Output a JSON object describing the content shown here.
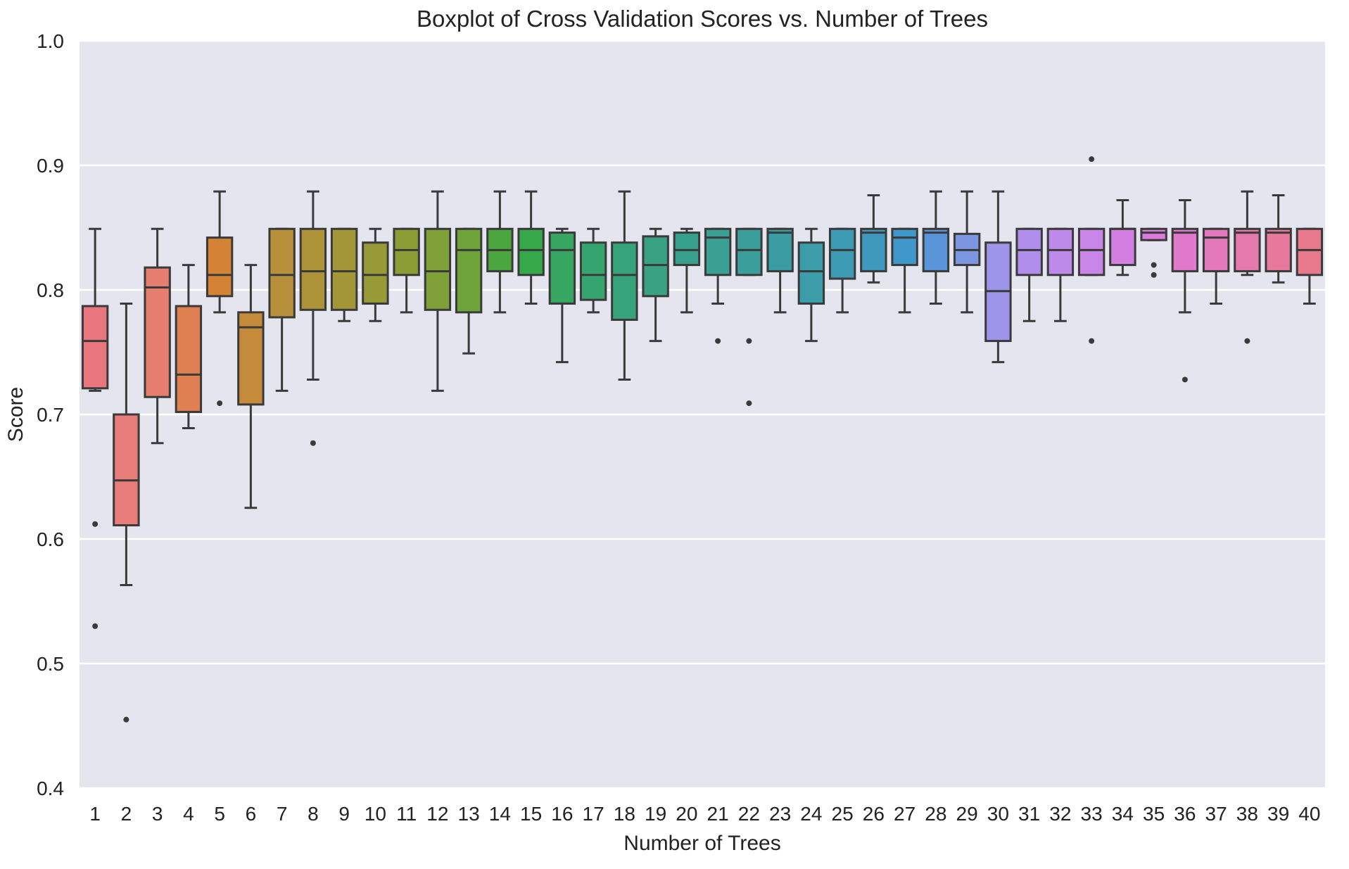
{
  "chart_data": {
    "type": "boxplot",
    "title": "Boxplot of Cross Validation Scores vs. Number of Trees",
    "xlabel": "Number of Trees",
    "ylabel": "Score",
    "ylim": [
      0.4,
      1.0
    ],
    "yticks": [
      "1.0",
      "0.9",
      "0.8",
      "0.7",
      "0.6",
      "0.5",
      "0.4"
    ],
    "grid": true,
    "background": "#e5e5ef",
    "categories": [
      "1",
      "2",
      "3",
      "4",
      "5",
      "6",
      "7",
      "8",
      "9",
      "10",
      "11",
      "12",
      "13",
      "14",
      "15",
      "16",
      "17",
      "18",
      "19",
      "20",
      "21",
      "22",
      "23",
      "24",
      "25",
      "26",
      "27",
      "28",
      "29",
      "30",
      "31",
      "32",
      "33",
      "34",
      "35",
      "36",
      "37",
      "38",
      "39",
      "40"
    ],
    "boxes": [
      {
        "whisker_low": 0.719,
        "q1": 0.721,
        "median": 0.759,
        "q3": 0.787,
        "whisker_high": 0.849,
        "outliers": [
          0.612,
          0.53
        ],
        "color": "#e9767f"
      },
      {
        "whisker_low": 0.563,
        "q1": 0.611,
        "median": 0.647,
        "q3": 0.7,
        "whisker_high": 0.789,
        "outliers": [
          0.455
        ],
        "color": "#e77c78"
      },
      {
        "whisker_low": 0.677,
        "q1": 0.714,
        "median": 0.802,
        "q3": 0.818,
        "whisker_high": 0.849,
        "outliers": [],
        "color": "#e57e6f"
      },
      {
        "whisker_low": 0.689,
        "q1": 0.702,
        "median": 0.732,
        "q3": 0.787,
        "whisker_high": 0.82,
        "outliers": [],
        "color": "#df8052"
      },
      {
        "whisker_low": 0.782,
        "q1": 0.795,
        "median": 0.812,
        "q3": 0.842,
        "whisker_high": 0.879,
        "outliers": [
          0.709
        ],
        "color": "#d48335"
      },
      {
        "whisker_low": 0.625,
        "q1": 0.708,
        "median": 0.77,
        "q3": 0.782,
        "whisker_high": 0.82,
        "outliers": [],
        "color": "#c58a3a"
      },
      {
        "whisker_low": 0.719,
        "q1": 0.778,
        "median": 0.812,
        "q3": 0.849,
        "whisker_high": 0.849,
        "outliers": [],
        "color": "#b88f3b"
      },
      {
        "whisker_low": 0.728,
        "q1": 0.784,
        "median": 0.815,
        "q3": 0.849,
        "whisker_high": 0.879,
        "outliers": [
          0.677
        ],
        "color": "#ac9339"
      },
      {
        "whisker_low": 0.775,
        "q1": 0.784,
        "median": 0.815,
        "q3": 0.849,
        "whisker_high": 0.849,
        "outliers": [],
        "color": "#a29637"
      },
      {
        "whisker_low": 0.775,
        "q1": 0.789,
        "median": 0.812,
        "q3": 0.838,
        "whisker_high": 0.849,
        "outliers": [],
        "color": "#989a37"
      },
      {
        "whisker_low": 0.782,
        "q1": 0.812,
        "median": 0.832,
        "q3": 0.849,
        "whisker_high": 0.849,
        "outliers": [],
        "color": "#8c9d36"
      },
      {
        "whisker_low": 0.719,
        "q1": 0.784,
        "median": 0.815,
        "q3": 0.849,
        "whisker_high": 0.879,
        "outliers": [],
        "color": "#7ea036"
      },
      {
        "whisker_low": 0.749,
        "q1": 0.782,
        "median": 0.832,
        "q3": 0.849,
        "whisker_high": 0.849,
        "outliers": [],
        "color": "#6da338"
      },
      {
        "whisker_low": 0.782,
        "q1": 0.815,
        "median": 0.832,
        "q3": 0.849,
        "whisker_high": 0.879,
        "outliers": [],
        "color": "#4ca63f"
      },
      {
        "whisker_low": 0.789,
        "q1": 0.812,
        "median": 0.832,
        "q3": 0.849,
        "whisker_high": 0.879,
        "outliers": [],
        "color": "#35a849"
      },
      {
        "whisker_low": 0.742,
        "q1": 0.789,
        "median": 0.832,
        "q3": 0.846,
        "whisker_high": 0.849,
        "outliers": [],
        "color": "#36a660"
      },
      {
        "whisker_low": 0.782,
        "q1": 0.792,
        "median": 0.812,
        "q3": 0.838,
        "whisker_high": 0.849,
        "outliers": [],
        "color": "#36a46e"
      },
      {
        "whisker_low": 0.728,
        "q1": 0.776,
        "median": 0.812,
        "q3": 0.838,
        "whisker_high": 0.879,
        "outliers": [],
        "color": "#37a37a"
      },
      {
        "whisker_low": 0.759,
        "q1": 0.795,
        "median": 0.82,
        "q3": 0.843,
        "whisker_high": 0.849,
        "outliers": [],
        "color": "#38a283"
      },
      {
        "whisker_low": 0.782,
        "q1": 0.82,
        "median": 0.832,
        "q3": 0.846,
        "whisker_high": 0.849,
        "outliers": [],
        "color": "#38a18c"
      },
      {
        "whisker_low": 0.789,
        "q1": 0.812,
        "median": 0.842,
        "q3": 0.849,
        "whisker_high": 0.849,
        "outliers": [
          0.759
        ],
        "color": "#39a093"
      },
      {
        "whisker_low": 0.812,
        "q1": 0.812,
        "median": 0.832,
        "q3": 0.849,
        "whisker_high": 0.849,
        "outliers": [
          0.759,
          0.709
        ],
        "color": "#3a9e9a"
      },
      {
        "whisker_low": 0.782,
        "q1": 0.815,
        "median": 0.846,
        "q3": 0.849,
        "whisker_high": 0.849,
        "outliers": [],
        "color": "#3a9da2"
      },
      {
        "whisker_low": 0.759,
        "q1": 0.789,
        "median": 0.815,
        "q3": 0.838,
        "whisker_high": 0.849,
        "outliers": [],
        "color": "#3b9caa"
      },
      {
        "whisker_low": 0.782,
        "q1": 0.809,
        "median": 0.832,
        "q3": 0.849,
        "whisker_high": 0.849,
        "outliers": [],
        "color": "#3c9ab3"
      },
      {
        "whisker_low": 0.806,
        "q1": 0.815,
        "median": 0.846,
        "q3": 0.849,
        "whisker_high": 0.876,
        "outliers": [],
        "color": "#3e99bd"
      },
      {
        "whisker_low": 0.782,
        "q1": 0.82,
        "median": 0.842,
        "q3": 0.849,
        "whisker_high": 0.849,
        "outliers": [],
        "color": "#4097ca"
      },
      {
        "whisker_low": 0.789,
        "q1": 0.815,
        "median": 0.846,
        "q3": 0.849,
        "whisker_high": 0.879,
        "outliers": [],
        "color": "#5a95d8"
      },
      {
        "whisker_low": 0.782,
        "q1": 0.82,
        "median": 0.832,
        "q3": 0.845,
        "whisker_high": 0.879,
        "outliers": [],
        "color": "#7b97e2"
      },
      {
        "whisker_low": 0.742,
        "q1": 0.759,
        "median": 0.799,
        "q3": 0.838,
        "whisker_high": 0.879,
        "outliers": [],
        "color": "#9c95ea"
      },
      {
        "whisker_low": 0.775,
        "q1": 0.812,
        "median": 0.832,
        "q3": 0.849,
        "whisker_high": 0.849,
        "outliers": [],
        "color": "#b08eec"
      },
      {
        "whisker_low": 0.775,
        "q1": 0.812,
        "median": 0.832,
        "q3": 0.849,
        "whisker_high": 0.849,
        "outliers": [],
        "color": "#bd8aea"
      },
      {
        "whisker_low": 0.812,
        "q1": 0.812,
        "median": 0.832,
        "q3": 0.849,
        "whisker_high": 0.849,
        "outliers": [
          0.905,
          0.759
        ],
        "color": "#c985e7"
      },
      {
        "whisker_low": 0.812,
        "q1": 0.82,
        "median": 0.849,
        "q3": 0.849,
        "whisker_high": 0.872,
        "outliers": [],
        "color": "#d37fe2"
      },
      {
        "whisker_low": 0.84,
        "q1": 0.84,
        "median": 0.846,
        "q3": 0.849,
        "whisker_high": 0.849,
        "outliers": [
          0.82,
          0.812
        ],
        "color": "#dc7bd9"
      },
      {
        "whisker_low": 0.782,
        "q1": 0.815,
        "median": 0.846,
        "q3": 0.849,
        "whisker_high": 0.872,
        "outliers": [
          0.728
        ],
        "color": "#e078cc"
      },
      {
        "whisker_low": 0.789,
        "q1": 0.815,
        "median": 0.842,
        "q3": 0.849,
        "whisker_high": 0.849,
        "outliers": [],
        "color": "#e378bd"
      },
      {
        "whisker_low": 0.812,
        "q1": 0.815,
        "median": 0.846,
        "q3": 0.849,
        "whisker_high": 0.879,
        "outliers": [
          0.759
        ],
        "color": "#e579ab"
      },
      {
        "whisker_low": 0.806,
        "q1": 0.815,
        "median": 0.846,
        "q3": 0.849,
        "whisker_high": 0.876,
        "outliers": [],
        "color": "#e77a9c"
      },
      {
        "whisker_low": 0.789,
        "q1": 0.812,
        "median": 0.832,
        "q3": 0.849,
        "whisker_high": 0.849,
        "outliers": [],
        "color": "#e8798c"
      }
    ]
  }
}
